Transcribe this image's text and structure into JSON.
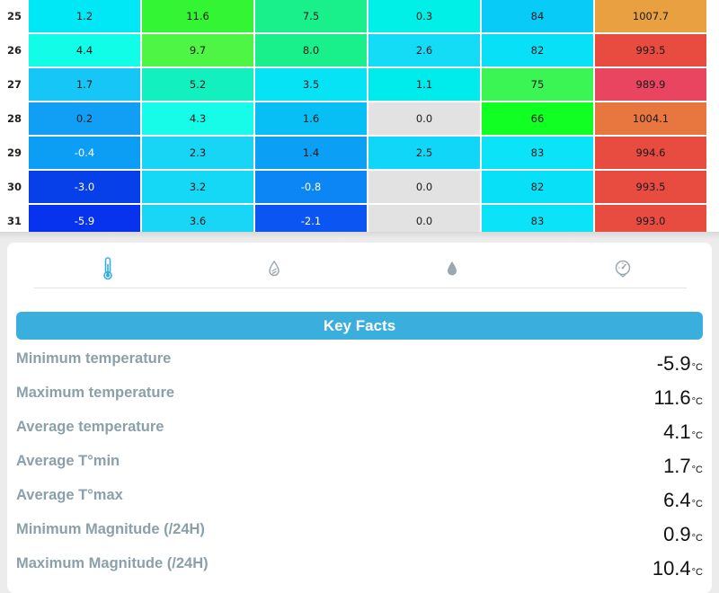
{
  "table": {
    "rows": [
      {
        "day": "25",
        "cells": [
          {
            "v": "1.2",
            "bg": "#00e8f5"
          },
          {
            "v": "11.6",
            "bg": "#33f533"
          },
          {
            "v": "7.5",
            "bg": "#19f08c"
          },
          {
            "v": "0.3",
            "bg": "#00f0e8"
          },
          {
            "v": "84",
            "bg": "#08ccf7"
          },
          {
            "v": "1007.7",
            "bg": "#e8a040"
          }
        ]
      },
      {
        "day": "26",
        "cells": [
          {
            "v": "4.4",
            "bg": "#11fde8"
          },
          {
            "v": "9.7",
            "bg": "#4ef545"
          },
          {
            "v": "8.0",
            "bg": "#19f08c"
          },
          {
            "v": "2.6",
            "bg": "#15dcf6"
          },
          {
            "v": "82",
            "bg": "#08e0f7"
          },
          {
            "v": "993.5",
            "bg": "#e84b40"
          }
        ]
      },
      {
        "day": "27",
        "cells": [
          {
            "v": "1.7",
            "bg": "#16c6f6"
          },
          {
            "v": "5.2",
            "bg": "#12f0c0"
          },
          {
            "v": "3.5",
            "bg": "#05e3f5"
          },
          {
            "v": "1.1",
            "bg": "#00ecec"
          },
          {
            "v": "75",
            "bg": "#3af554"
          },
          {
            "v": "989.9",
            "bg": "#ea4560"
          }
        ]
      },
      {
        "day": "28",
        "cells": [
          {
            "v": "0.2",
            "bg": "#109ff5"
          },
          {
            "v": "4.3",
            "bg": "#17fbe9"
          },
          {
            "v": "1.6",
            "bg": "#08bff5"
          },
          {
            "v": "0.0",
            "bg": "#e2e2e2"
          },
          {
            "v": "66",
            "bg": "#11ff22"
          },
          {
            "v": "1004.1",
            "bg": "#e8763f"
          }
        ]
      },
      {
        "day": "29",
        "cells": [
          {
            "v": "-0.4",
            "bg": "#0c9df5",
            "light": true
          },
          {
            "v": "2.3",
            "bg": "#18d5f5"
          },
          {
            "v": "1.4",
            "bg": "#0b9ff6"
          },
          {
            "v": "2.5",
            "bg": "#10d7f7"
          },
          {
            "v": "83",
            "bg": "#0ae3f8"
          },
          {
            "v": "994.6",
            "bg": "#e84b40"
          }
        ]
      },
      {
        "day": "30",
        "cells": [
          {
            "v": "-3.0",
            "bg": "#0740e8",
            "light": true
          },
          {
            "v": "3.2",
            "bg": "#14d8f5"
          },
          {
            "v": "-0.8",
            "bg": "#0c86f5",
            "light": true
          },
          {
            "v": "0.0",
            "bg": "#e2e2e2"
          },
          {
            "v": "82",
            "bg": "#08e0f7"
          },
          {
            "v": "993.5",
            "bg": "#e84b40"
          }
        ]
      },
      {
        "day": "31",
        "cells": [
          {
            "v": "-5.9",
            "bg": "#0833ee",
            "light": true
          },
          {
            "v": "3.6",
            "bg": "#1ad6f6"
          },
          {
            "v": "-2.1",
            "bg": "#0b55f2",
            "light": true
          },
          {
            "v": "0.0",
            "bg": "#e2e2e2"
          },
          {
            "v": "83",
            "bg": "#0ae3f8"
          },
          {
            "v": "993.0",
            "bg": "#e84b40"
          }
        ]
      }
    ]
  },
  "tabs": [
    {
      "name": "thermometer-icon",
      "active": true
    },
    {
      "name": "rain-drop-icon",
      "active": false
    },
    {
      "name": "humidity-drop-icon",
      "active": false
    },
    {
      "name": "pressure-gauge-icon",
      "active": false
    }
  ],
  "colors": {
    "accent": "#3aaedd",
    "label": "#8aa0ab",
    "active_icon": "#3aaedd",
    "inactive_icon": "#9aa8b0"
  },
  "key_facts": {
    "title": "Key Facts",
    "rows": [
      {
        "label": "Minimum temperature",
        "value": "-5.9",
        "unit": "°C"
      },
      {
        "label": "Maximum temperature",
        "value": "11.6",
        "unit": "°C"
      },
      {
        "label": "Average temperature",
        "value": "4.1",
        "unit": "°C"
      },
      {
        "label": "Average T°min",
        "value": "1.7",
        "unit": "°C"
      },
      {
        "label": "Average T°max",
        "value": "6.4",
        "unit": "°C"
      },
      {
        "label": "Minimum Magnitude (/24H)",
        "value": "0.9",
        "unit": "°C"
      },
      {
        "label": "Maximum Magnitude (/24H)",
        "value": "10.4",
        "unit": "°C"
      }
    ]
  }
}
